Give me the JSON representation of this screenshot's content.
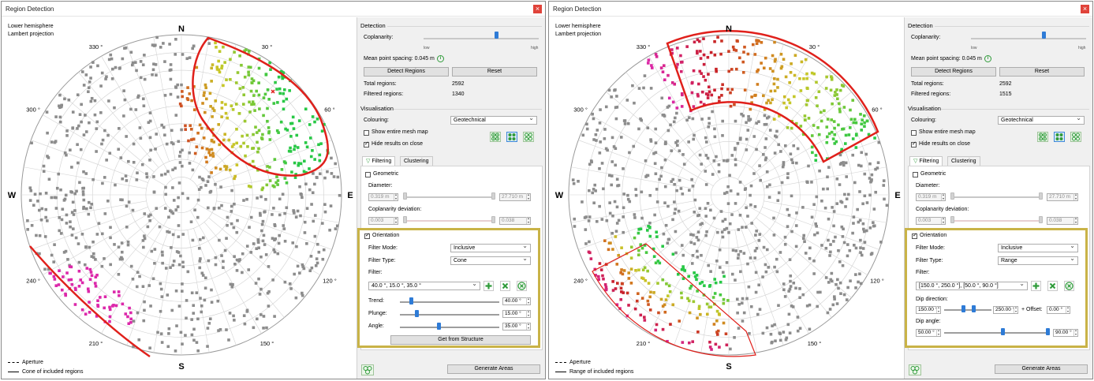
{
  "windows": [
    {
      "title": "Region Detection",
      "projection": [
        "Lower hemisphere",
        "Lambert projection"
      ],
      "compass": {
        "n": "N",
        "s": "S",
        "e": "E",
        "w": "W"
      },
      "angles": [
        "330 °",
        "30 °",
        "300 °",
        "60 °",
        "240 °",
        "120 °",
        "210 °",
        "150 °"
      ],
      "legend": {
        "aperture": "Aperture",
        "included": "Cone of included regions"
      },
      "detection": {
        "section": "Detection",
        "coplanarity_label": "Coplanarity:",
        "low": "low",
        "high": "high",
        "coplanarity_level": 0.75,
        "mean_spacing": "Mean point spacing: 0.045 m",
        "detect_button": "Detect Regions",
        "reset_button": "Reset",
        "total_label": "Total regions:",
        "total_value": "2592",
        "filtered_label": "Filtered regions:",
        "filtered_value": "1340"
      },
      "visualisation": {
        "section": "Visualisation",
        "colouring_label": "Colouring:",
        "colouring_value": "Geotechnical",
        "show_mesh": "Show entire mesh map",
        "hide_results": "Hide results on close"
      },
      "tabs": {
        "filtering": "Filtering",
        "clustering": "Clustering"
      },
      "geometric": {
        "label": "Geometric",
        "diameter_label": "Diameter:",
        "diameter_min": "0.319 m",
        "diameter_max": "27.710 m",
        "copdev_label": "Coplanarity deviation:",
        "copdev_min": "0.003",
        "copdev_max": "0.038"
      },
      "orientation": {
        "label": "Orientation",
        "filter_mode_label": "Filter Mode:",
        "filter_mode_value": "Inclusive",
        "filter_type_label": "Filter Type:",
        "filter_type_value": "Cone",
        "filter_label": "Filter:",
        "filter_value": "40.0 °, 15.0 °, 35.0 °",
        "trend_label": "Trend:",
        "trend_value": "40.00 °",
        "trend_level": 0.11,
        "plunge_label": "Plunge:",
        "plunge_value": "15.00 °",
        "plunge_level": 0.17,
        "angle_label": "Angle:",
        "angle_value": "35.00 °",
        "angle_level": 0.39,
        "structure_button": "Get from Structure"
      },
      "generate_button": "Generate Areas"
    },
    {
      "title": "Region Detection",
      "projection": [
        "Lower hemisphere",
        "Lambert projection"
      ],
      "compass": {
        "n": "N",
        "s": "S",
        "e": "E",
        "w": "W"
      },
      "angles": [
        "330 °",
        "30 °",
        "300 °",
        "60 °",
        "240 °",
        "120 °",
        "210 °",
        "150 °"
      ],
      "legend": {
        "aperture": "Aperture",
        "included": "Range of included regions"
      },
      "detection": {
        "section": "Detection",
        "coplanarity_label": "Coplanarity:",
        "low": "low",
        "high": "high",
        "coplanarity_level": 0.75,
        "mean_spacing": "Mean point spacing: 0.045 m",
        "detect_button": "Detect Regions",
        "reset_button": "Reset",
        "total_label": "Total regions:",
        "total_value": "2592",
        "filtered_label": "Filtered regions:",
        "filtered_value": "1515"
      },
      "visualisation": {
        "section": "Visualisation",
        "colouring_label": "Colouring:",
        "colouring_value": "Geotechnical",
        "show_mesh": "Show entire mesh map",
        "hide_results": "Hide results on close"
      },
      "tabs": {
        "filtering": "Filtering",
        "clustering": "Clustering"
      },
      "geometric": {
        "label": "Geometric",
        "diameter_label": "Diameter:",
        "diameter_min": "0.319 m",
        "diameter_max": "27.710 m",
        "copdev_label": "Coplanarity deviation:",
        "copdev_min": "0.003",
        "copdev_max": "0.038"
      },
      "orientation": {
        "label": "Orientation",
        "filter_mode_label": "Filter Mode:",
        "filter_mode_value": "Inclusive",
        "filter_type_label": "Filter Type:",
        "filter_type_value": "Range",
        "filter_label": "Filter:",
        "filter_value": "[150.0 °, 250.0 °], [50.0 °, 90.0 °]",
        "dipdir_label": "Dip direction:",
        "dipdir_min": "150.00 °",
        "dipdir_max": "250.00 °",
        "offset_label": "+ Offset:",
        "offset_value": "0.00 °",
        "dipangle_label": "Dip angle:",
        "dipangle_min": "50.00 °",
        "dipangle_max": "90.00 °"
      },
      "generate_button": "Generate Areas"
    }
  ]
}
